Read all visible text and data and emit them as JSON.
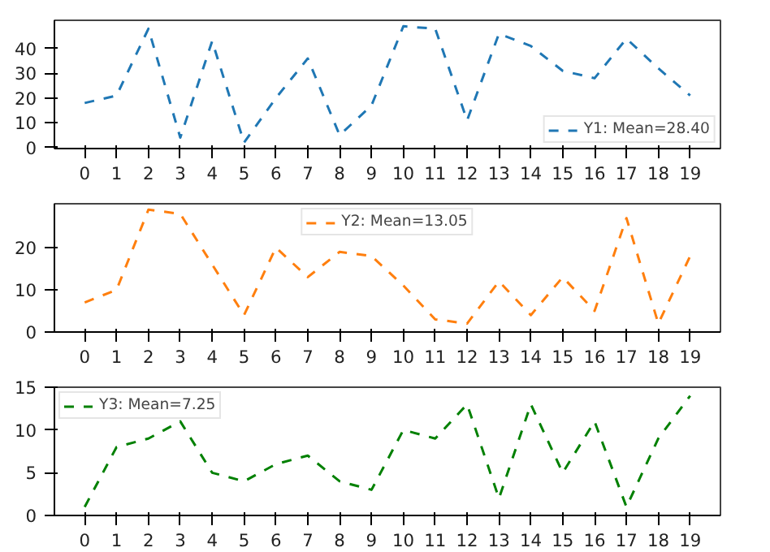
{
  "chart_data": [
    {
      "type": "line",
      "x": [
        0,
        1,
        2,
        3,
        4,
        5,
        6,
        7,
        8,
        9,
        10,
        11,
        12,
        13,
        14,
        15,
        16,
        17,
        18,
        19
      ],
      "xlim": [
        -0.95,
        19.95
      ],
      "xticks": [
        0,
        1,
        2,
        3,
        4,
        5,
        6,
        7,
        8,
        9,
        10,
        11,
        12,
        13,
        14,
        15,
        16,
        17,
        18,
        19
      ],
      "ylim": [
        -0.4,
        51.4
      ],
      "yticks": [
        0,
        10,
        20,
        30,
        40
      ],
      "line_style": "dashed",
      "legend": "bottom right",
      "series": [
        {
          "name": "Y1: Mean=28.40",
          "color": "#1f77b4",
          "values": [
            18,
            21,
            48,
            4,
            43,
            2,
            20,
            36,
            5,
            17,
            49,
            48,
            11,
            46,
            41,
            31,
            28,
            44,
            32,
            21
          ]
        }
      ]
    },
    {
      "type": "line",
      "x": [
        0,
        1,
        2,
        3,
        4,
        5,
        6,
        7,
        8,
        9,
        10,
        11,
        12,
        13,
        14,
        15,
        16,
        17,
        18,
        19
      ],
      "xlim": [
        -0.95,
        19.95
      ],
      "xticks": [
        0,
        1,
        2,
        3,
        4,
        5,
        6,
        7,
        8,
        9,
        10,
        11,
        12,
        13,
        14,
        15,
        16,
        17,
        18,
        19
      ],
      "ylim": [
        0,
        30.4
      ],
      "yticks": [
        0,
        10,
        20
      ],
      "line_style": "dashed",
      "legend": "top center",
      "series": [
        {
          "name": "Y2: Mean=13.05",
          "color": "#ff7f0e",
          "values": [
            7,
            10,
            29,
            28,
            16,
            4,
            20,
            13,
            19,
            18,
            11,
            3,
            2,
            12,
            4,
            13,
            5,
            27,
            2,
            18
          ]
        }
      ]
    },
    {
      "type": "line",
      "x": [
        0,
        1,
        2,
        3,
        4,
        5,
        6,
        7,
        8,
        9,
        10,
        11,
        12,
        13,
        14,
        15,
        16,
        17,
        18,
        19
      ],
      "xlim": [
        -0.95,
        19.95
      ],
      "xticks": [
        0,
        1,
        2,
        3,
        4,
        5,
        6,
        7,
        8,
        9,
        10,
        11,
        12,
        13,
        14,
        15,
        16,
        17,
        18,
        19
      ],
      "ylim": [
        0,
        15
      ],
      "yticks": [
        0,
        5,
        10,
        15
      ],
      "line_style": "dashed",
      "legend": "top left",
      "series": [
        {
          "name": "Y3: Mean=7.25",
          "color": "#008000",
          "values": [
            1,
            8,
            9,
            11,
            5,
            4,
            6,
            7,
            4,
            3,
            10,
            9,
            13,
            2,
            13,
            5,
            11,
            1,
            9,
            14
          ]
        }
      ]
    }
  ]
}
